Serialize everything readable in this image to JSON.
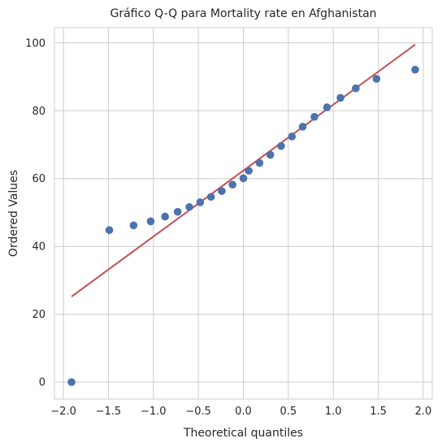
{
  "chart_data": {
    "type": "scatter",
    "title": "Gráfico Q-Q para Mortality rate en Afghanistan",
    "xlabel": "Theoretical quantiles",
    "ylabel": "Ordered Values",
    "xlim": [
      -2.1,
      2.1
    ],
    "ylim": [
      -5,
      104.5
    ],
    "xticks": [
      -2.0,
      -1.5,
      -1.0,
      -0.5,
      0.0,
      0.5,
      1.0,
      1.5,
      2.0
    ],
    "xtick_labels": [
      "−2.0",
      "−1.5",
      "−1.0",
      "−0.5",
      "0.0",
      "0.5",
      "1.0",
      "1.5",
      "2.0"
    ],
    "yticks": [
      0,
      20,
      40,
      60,
      80,
      100
    ],
    "ytick_labels": [
      "0",
      "20",
      "40",
      "60",
      "80",
      "100"
    ],
    "grid": true,
    "series": [
      {
        "type": "scatter",
        "color": "#4c72b0",
        "x": [
          -1.91,
          -1.49,
          -1.22,
          -1.03,
          -0.87,
          -0.73,
          -0.6,
          -0.48,
          -0.36,
          -0.24,
          -0.12,
          0.0,
          0.06,
          0.18,
          0.3,
          0.42,
          0.54,
          0.66,
          0.79,
          0.93,
          1.08,
          1.25,
          1.48,
          1.91
        ],
        "y": [
          0.0,
          44.8,
          46.2,
          47.4,
          48.8,
          50.2,
          51.6,
          53.0,
          54.6,
          56.3,
          58.2,
          60.1,
          62.3,
          64.6,
          67.0,
          69.6,
          72.4,
          75.3,
          78.2,
          81.0,
          83.8,
          86.6,
          89.4,
          92.1
        ]
      },
      {
        "type": "line",
        "color": "#c44e52",
        "x": [
          -1.91,
          1.91
        ],
        "y": [
          25.2,
          99.5
        ]
      }
    ]
  }
}
